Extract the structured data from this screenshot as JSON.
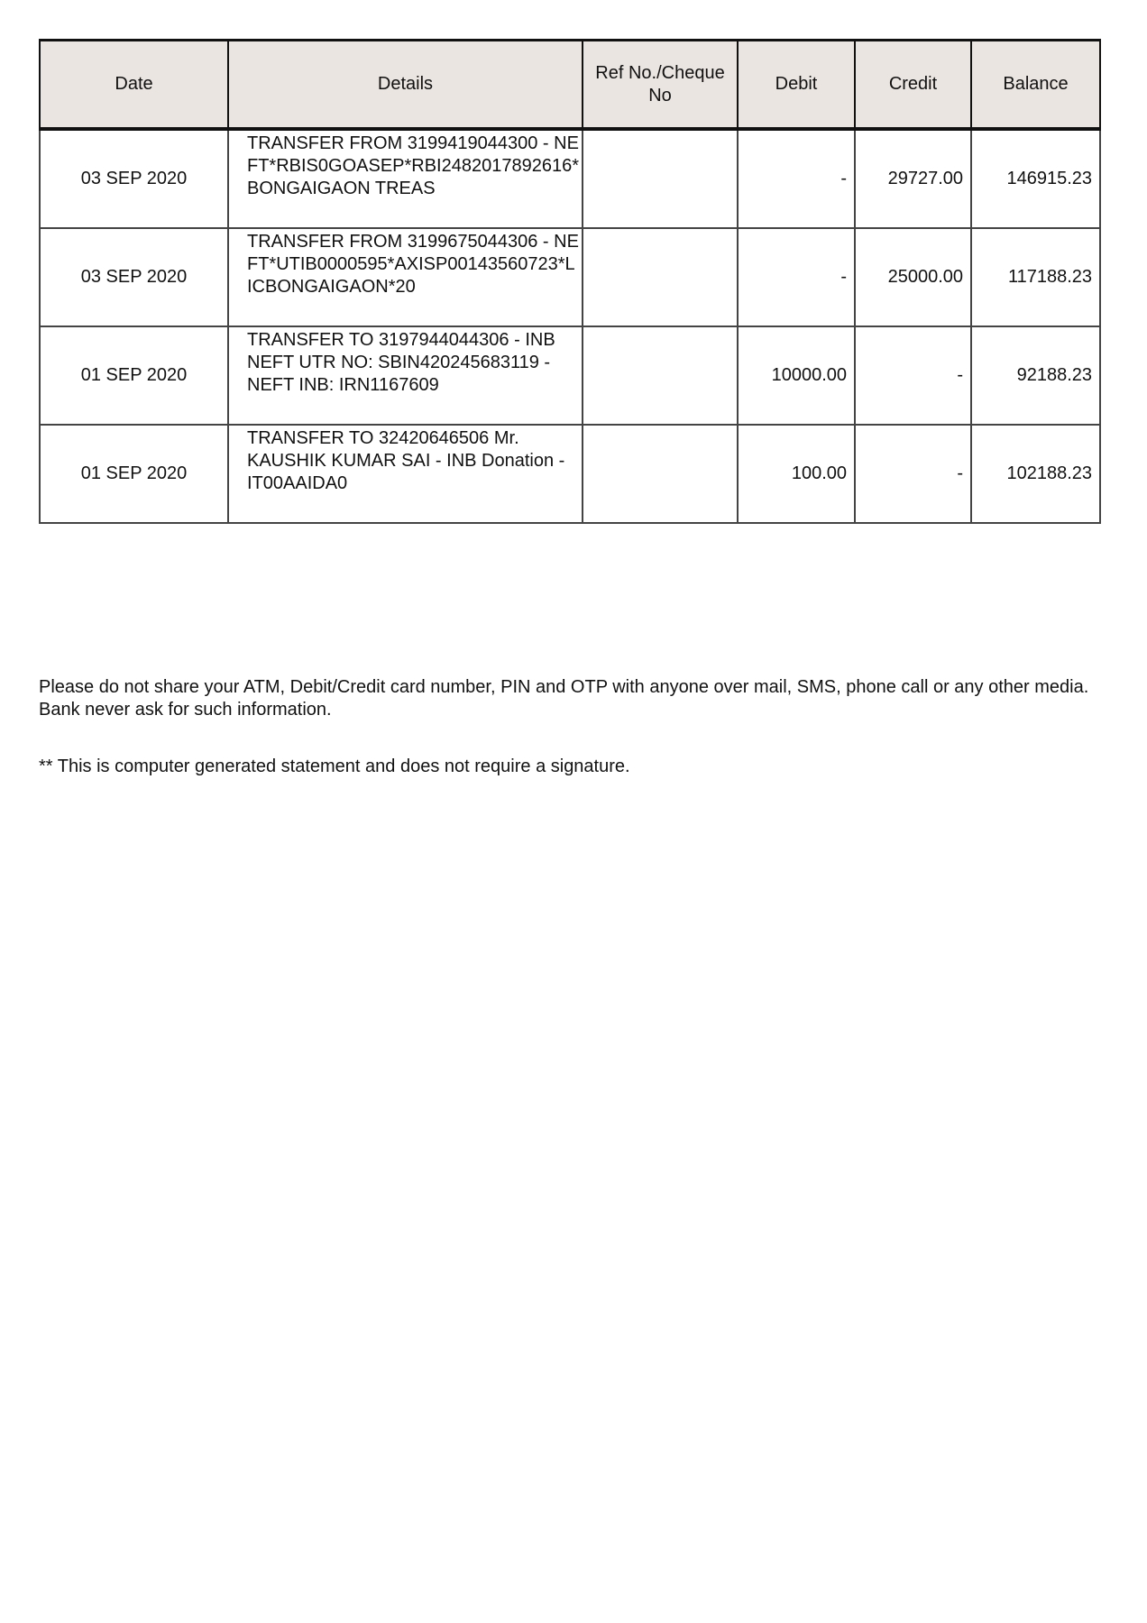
{
  "table": {
    "headers": [
      "Date",
      "Details",
      "Ref No./Cheque No",
      "Debit",
      "Credit",
      "Balance"
    ],
    "rows": [
      {
        "date": "03 SEP 2020",
        "details": "TRANSFER FROM 3199419044300 - NEFT*RBIS0GOASEP*RBI2482017892616*BONGAIGAON TREAS",
        "ref": "",
        "debit": "-",
        "credit": "29727.00",
        "balance": "146915.23"
      },
      {
        "date": "03 SEP 2020",
        "details": "TRANSFER FROM 3199675044306 - NEFT*UTIB0000595*AXISP00143560723*LICBONGAIGAON*20",
        "ref": "",
        "debit": "-",
        "credit": "25000.00",
        "balance": "117188.23"
      },
      {
        "date": "01 SEP 2020",
        "details": "TRANSFER TO 3197944044306 - INB NEFT UTR NO: SBIN420245683119 - NEFT INB: IRN1167609",
        "ref": "",
        "debit": "10000.00",
        "credit": "-",
        "balance": "92188.23"
      },
      {
        "date": "01 SEP 2020",
        "details": "TRANSFER TO 32420646506 Mr. KAUSHIK KUMAR SAI - INB Donation - IT00AAIDA0",
        "ref": "",
        "debit": "100.00",
        "credit": "-",
        "balance": "102188.23"
      }
    ]
  },
  "footer": {
    "warning": "Please do not share your ATM, Debit/Credit card number, PIN and OTP with anyone over mail, SMS, phone call or any other media. Bank never ask for such information.",
    "note": "** This is computer generated statement and does not require a signature."
  },
  "colors": {
    "header_bg": "#ebe5e1",
    "border": "#222222"
  }
}
